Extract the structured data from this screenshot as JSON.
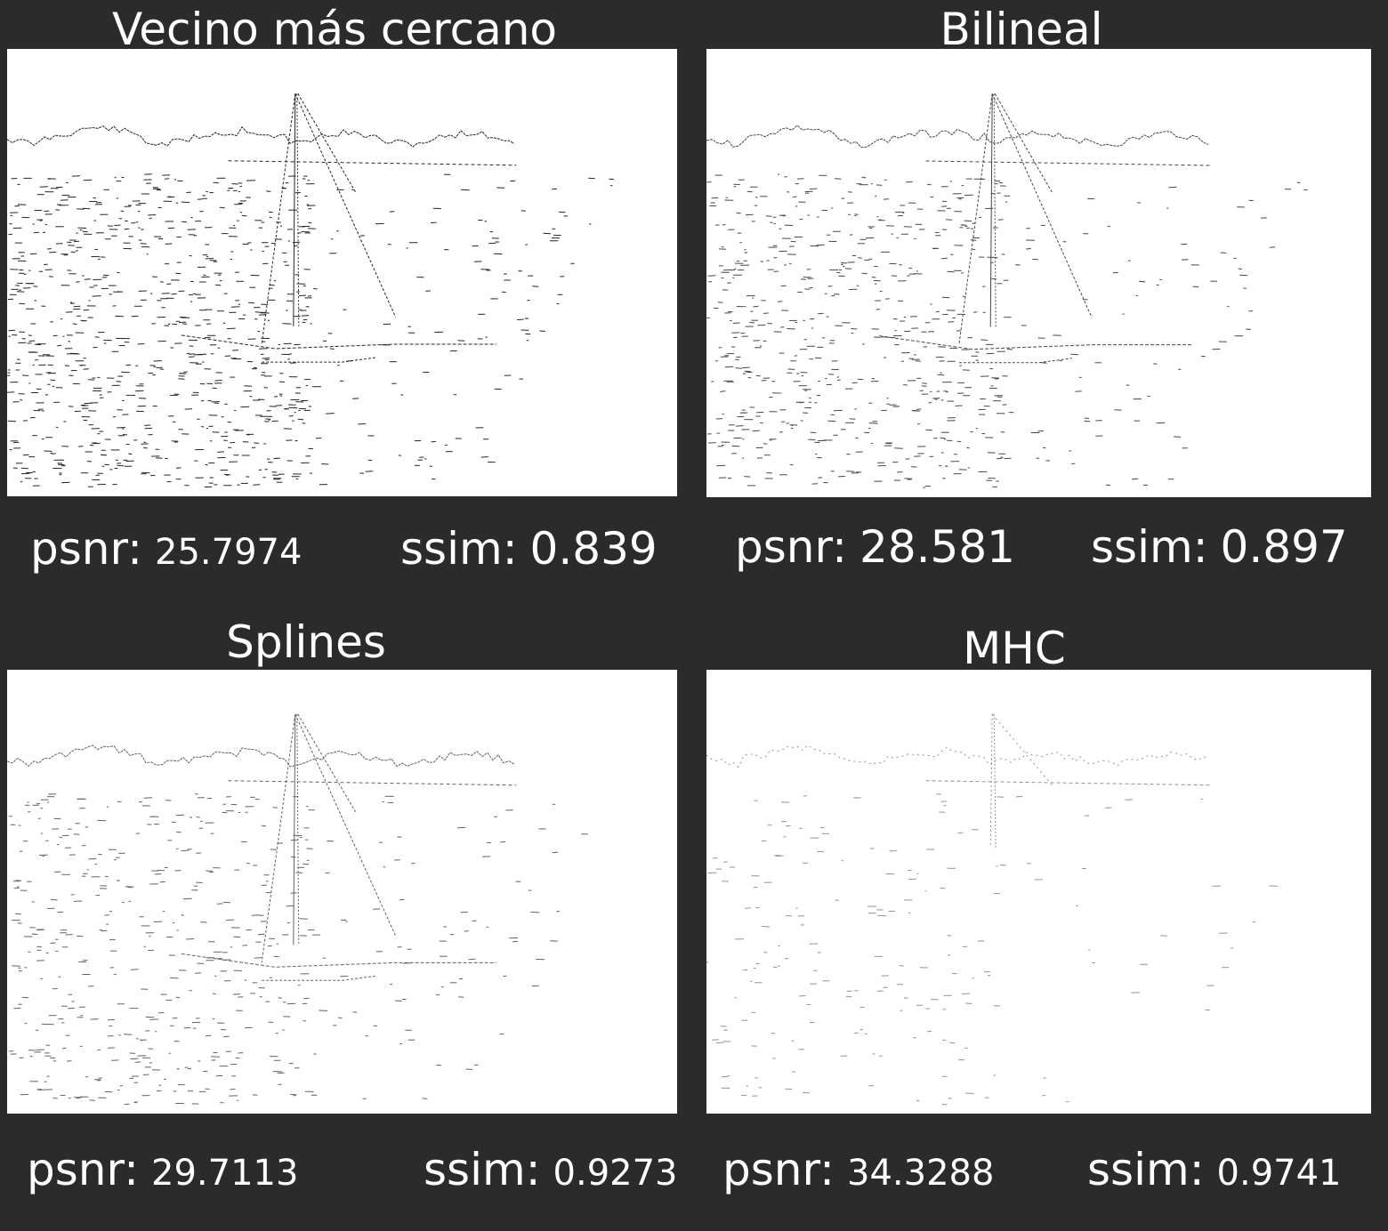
{
  "panels": [
    {
      "title": "Vecino más cercano",
      "psnr_label": "psnr:",
      "psnr_value": "25.7974",
      "ssim_label": "ssim:",
      "ssim_value": "0.839",
      "edge_density": 1.0
    },
    {
      "title": "Bilineal",
      "psnr_label": "psnr:",
      "psnr_value": "28.581",
      "ssim_label": "ssim:",
      "ssim_value": "0.897",
      "edge_density": 0.75
    },
    {
      "title": "Splines",
      "psnr_label": "psnr:",
      "psnr_value": "29.7113",
      "ssim_label": "ssim:",
      "ssim_value": "0.9273",
      "edge_density": 0.55
    },
    {
      "title": "MHC",
      "psnr_label": "psnr:",
      "psnr_value": "34.3288",
      "ssim_label": "ssim:",
      "ssim_value": "0.9741",
      "edge_density": 0.2
    }
  ],
  "colors": {
    "background": "#2b2b2b",
    "text": "#ffffff",
    "image_background": "#ffffff",
    "edge_ink": "#1a1a1a"
  }
}
